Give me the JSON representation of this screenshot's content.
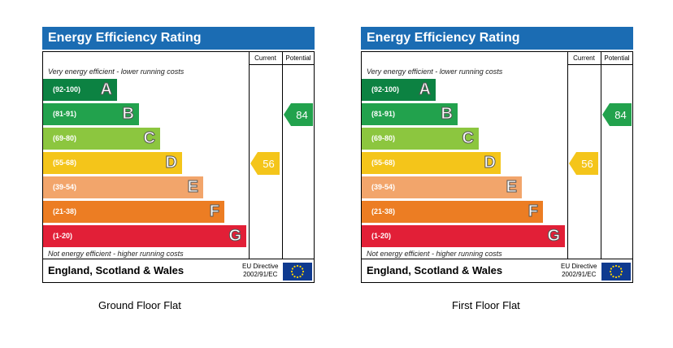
{
  "chart_data": [
    {
      "type": "bar",
      "title": "Energy Efficiency Rating",
      "column_headers": [
        "Current",
        "Potential"
      ],
      "top_note": "Very energy efficient - lower running costs",
      "bottom_note": "Not energy efficient - higher running costs",
      "bands": [
        {
          "range": "(92-100)",
          "letter": "A",
          "color": "#0c8242"
        },
        {
          "range": "(81-91)",
          "letter": "B",
          "color": "#22a24d"
        },
        {
          "range": "(69-80)",
          "letter": "C",
          "color": "#8cc63f"
        },
        {
          "range": "(55-68)",
          "letter": "D",
          "color": "#f4c51a"
        },
        {
          "range": "(39-54)",
          "letter": "E",
          "color": "#f2a56b"
        },
        {
          "range": "(21-38)",
          "letter": "F",
          "color": "#ec7d23"
        },
        {
          "range": "(1-20)",
          "letter": "G",
          "color": "#e21f37"
        }
      ],
      "current": {
        "value": "56",
        "band": "D",
        "color": "#f4c51a"
      },
      "potential": {
        "value": "84",
        "band": "B",
        "color": "#22a24d"
      },
      "region": "England, Scotland & Wales",
      "directive": [
        "EU Directive",
        "2002/91/EC"
      ],
      "caption": "Ground Floor Flat"
    },
    {
      "type": "bar",
      "title": "Energy Efficiency Rating",
      "column_headers": [
        "Current",
        "Potential"
      ],
      "top_note": "Very energy efficient - lower running costs",
      "bottom_note": "Not energy efficient - higher running costs",
      "bands": [
        {
          "range": "(92-100)",
          "letter": "A",
          "color": "#0c8242"
        },
        {
          "range": "(81-91)",
          "letter": "B",
          "color": "#22a24d"
        },
        {
          "range": "(69-80)",
          "letter": "C",
          "color": "#8cc63f"
        },
        {
          "range": "(55-68)",
          "letter": "D",
          "color": "#f4c51a"
        },
        {
          "range": "(39-54)",
          "letter": "E",
          "color": "#f2a56b"
        },
        {
          "range": "(21-38)",
          "letter": "F",
          "color": "#ec7d23"
        },
        {
          "range": "(1-20)",
          "letter": "G",
          "color": "#e21f37"
        }
      ],
      "current": {
        "value": "56",
        "band": "D",
        "color": "#f4c51a"
      },
      "potential": {
        "value": "84",
        "band": "B",
        "color": "#22a24d"
      },
      "region": "England, Scotland & Wales",
      "directive": [
        "EU Directive",
        "2002/91/EC"
      ],
      "caption": "First Floor Flat"
    }
  ]
}
